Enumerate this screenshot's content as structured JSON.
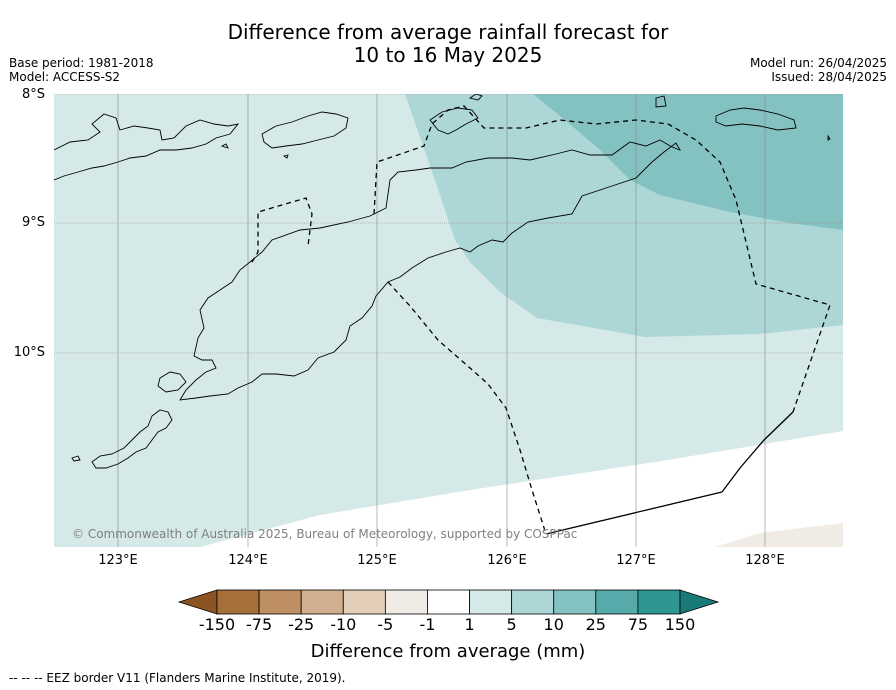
{
  "title_line1": "Difference from average rainfall forecast for",
  "title_line2": "10 to 16 May 2025",
  "base_period": "Base period: 1981-2018",
  "model": "Model: ACCESS-S2",
  "model_run": "Model run: 26/04/2025",
  "issued": "Issued: 28/04/2025",
  "lat_labels": [
    "8°S",
    "9°S",
    "10°S"
  ],
  "lon_labels": [
    "123°E",
    "124°E",
    "125°E",
    "126°E",
    "127°E",
    "128°E"
  ],
  "colorbar": {
    "ticks": [
      "-150",
      "-75",
      "-25",
      "-10",
      "-5",
      "-1",
      "1",
      "5",
      "10",
      "25",
      "75",
      "150"
    ],
    "colors": [
      "#a6703a",
      "#be8f64",
      "#d2af8e",
      "#e2cdb8",
      "#f1ebe5",
      "#ffffff",
      "#d4e9e8",
      "#add7d6",
      "#83c2c1",
      "#56abaa",
      "#2e9792"
    ],
    "extend_low": "#8c5422",
    "extend_high": "#1a7a77",
    "label": "Difference from average (mm)"
  },
  "copyright": "© Commonwealth of Australia 2025, Bureau of Meteorology, supported by COSPPac",
  "footer": "--  --  -- EEZ border V11 (Flanders Marine Institute, 2019)."
}
